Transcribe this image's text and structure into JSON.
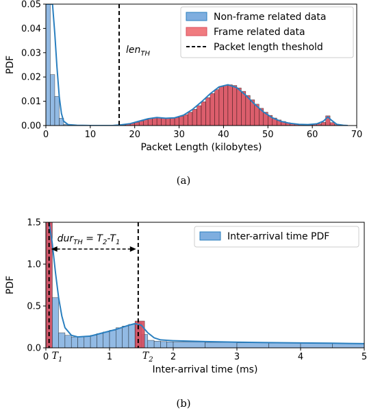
{
  "chart_data": [
    {
      "panel_label": "(a)",
      "type": "histogram",
      "xlabel": "Packet Length (kilobytes)",
      "ylabel": "PDF",
      "xlim": [
        0,
        70
      ],
      "ylim": [
        0,
        0.05
      ],
      "xticks": [
        "0",
        "10",
        "20",
        "30",
        "40",
        "50",
        "60",
        "70"
      ],
      "yticks": [
        "0.00",
        "0.01",
        "0.02",
        "0.03",
        "0.04",
        "0.05"
      ],
      "legend_position": "top-right",
      "legend": [
        {
          "label": "Non-frame related data",
          "color": "#7faedf",
          "kind": "patch"
        },
        {
          "label": "Frame related data",
          "color": "#f07b7f",
          "kind": "patch"
        },
        {
          "label": "Packet length theshold",
          "color": "#000000",
          "kind": "dashed-line"
        }
      ],
      "threshold": {
        "x": 16.5,
        "label_text": "len",
        "label_sub": "TH"
      },
      "bin_width": 1,
      "series": [
        {
          "name": "Non-frame related data",
          "color": "#7faedf",
          "bins": [
            [
              0,
              0.05
            ],
            [
              1,
              0.021
            ],
            [
              2,
              0.012
            ],
            [
              3,
              0.003
            ],
            [
              4,
              0.0005
            ],
            [
              5,
              0.0001
            ]
          ]
        },
        {
          "name": "Frame related data",
          "color": "#d84c5c",
          "bins": [
            [
              17,
              0.0003
            ],
            [
              18,
              0.0005
            ],
            [
              19,
              0.0009
            ],
            [
              20,
              0.0013
            ],
            [
              21,
              0.0018
            ],
            [
              22,
              0.0024
            ],
            [
              23,
              0.0029
            ],
            [
              24,
              0.0032
            ],
            [
              25,
              0.0033
            ],
            [
              26,
              0.0031
            ],
            [
              27,
              0.0029
            ],
            [
              28,
              0.003
            ],
            [
              29,
              0.0033
            ],
            [
              30,
              0.0038
            ],
            [
              31,
              0.0045
            ],
            [
              32,
              0.0055
            ],
            [
              33,
              0.0067
            ],
            [
              34,
              0.0082
            ],
            [
              35,
              0.0098
            ],
            [
              36,
              0.0115
            ],
            [
              37,
              0.0132
            ],
            [
              38,
              0.0148
            ],
            [
              39,
              0.016
            ],
            [
              40,
              0.0166
            ],
            [
              41,
              0.0168
            ],
            [
              42,
              0.0165
            ],
            [
              43,
              0.0155
            ],
            [
              44,
              0.0141
            ],
            [
              45,
              0.0124
            ],
            [
              46,
              0.0106
            ],
            [
              47,
              0.0088
            ],
            [
              48,
              0.0071
            ],
            [
              49,
              0.0055
            ],
            [
              50,
              0.0042
            ],
            [
              51,
              0.0031
            ],
            [
              52,
              0.0023
            ],
            [
              53,
              0.0017
            ],
            [
              54,
              0.0012
            ],
            [
              55,
              0.0009
            ],
            [
              56,
              0.0006
            ],
            [
              57,
              0.0005
            ],
            [
              58,
              0.0004
            ],
            [
              59,
              0.0004
            ],
            [
              60,
              0.0005
            ],
            [
              61,
              0.0007
            ],
            [
              62,
              0.0013
            ],
            [
              63,
              0.004
            ],
            [
              64,
              0.0012
            ],
            [
              65,
              0.0004
            ]
          ]
        }
      ],
      "kde": {
        "color": "#2a7fbf",
        "points": [
          [
            0,
            0.05
          ],
          [
            1.5,
            0.05
          ],
          [
            2,
            0.038
          ],
          [
            2.5,
            0.024
          ],
          [
            3,
            0.012
          ],
          [
            3.5,
            0.005
          ],
          [
            4,
            0.0018
          ],
          [
            5,
            0.0004
          ],
          [
            7,
            0.0001
          ],
          [
            10,
            0
          ],
          [
            15,
            0
          ],
          [
            17,
            0.0003
          ],
          [
            19,
            0.0008
          ],
          [
            21,
            0.0018
          ],
          [
            23,
            0.0028
          ],
          [
            25,
            0.0033
          ],
          [
            27,
            0.003
          ],
          [
            29,
            0.0032
          ],
          [
            31,
            0.0043
          ],
          [
            33,
            0.0066
          ],
          [
            35,
            0.0097
          ],
          [
            37,
            0.0131
          ],
          [
            39,
            0.0159
          ],
          [
            41,
            0.0168
          ],
          [
            43,
            0.0156
          ],
          [
            45,
            0.0125
          ],
          [
            47,
            0.0088
          ],
          [
            49,
            0.0056
          ],
          [
            51,
            0.0032
          ],
          [
            53,
            0.0017
          ],
          [
            55,
            0.0009
          ],
          [
            57,
            0.0005
          ],
          [
            59,
            0.0004
          ],
          [
            61,
            0.0007
          ],
          [
            62.5,
            0.0018
          ],
          [
            63.5,
            0.0036
          ],
          [
            64.3,
            0.0022
          ],
          [
            65.5,
            0.0005
          ],
          [
            67,
            0.0001
          ],
          [
            68,
            0
          ]
        ]
      }
    },
    {
      "panel_label": "(b)",
      "type": "histogram",
      "xlabel": "Inter-arrival time (ms)",
      "ylabel": "PDF",
      "xlim": [
        0,
        5
      ],
      "ylim": [
        0,
        1.5
      ],
      "xticks": [
        "0",
        "1",
        "2",
        "3",
        "4",
        "5"
      ],
      "yticks": [
        "0.0",
        "0.5",
        "1.0",
        "1.5"
      ],
      "legend_position": "top-right",
      "legend": [
        {
          "label": "Inter-arrival time PDF",
          "color": "#7faedf",
          "kind": "patch"
        }
      ],
      "markers": [
        {
          "x": 0.05,
          "label_text": "T",
          "label_sub": "1"
        },
        {
          "x": 1.45,
          "label_text": "T",
          "label_sub": "2"
        }
      ],
      "duration_annotation": {
        "text": "dur",
        "sub": "TH",
        "rest": " = T",
        "sub2": "2",
        "dash": "-T",
        "sub3": "1"
      },
      "bin_width": 0.1,
      "series": [
        {
          "name": "Inter-arrival time PDF",
          "color": "#7faedf",
          "bins": [
            [
              0.0,
              1.5
            ],
            [
              0.1,
              0.6
            ],
            [
              0.2,
              0.18
            ],
            [
              0.3,
              0.15
            ],
            [
              0.4,
              0.13
            ],
            [
              0.5,
              0.13
            ],
            [
              0.6,
              0.14
            ],
            [
              0.7,
              0.15
            ],
            [
              0.8,
              0.17
            ],
            [
              0.9,
              0.19
            ],
            [
              1.0,
              0.21
            ],
            [
              1.1,
              0.24
            ],
            [
              1.2,
              0.26
            ],
            [
              1.3,
              0.28
            ],
            [
              1.4,
              0.3
            ],
            [
              1.5,
              0.16
            ],
            [
              1.6,
              0.09
            ],
            [
              1.7,
              0.08
            ],
            [
              1.8,
              0.075
            ],
            [
              1.9,
              0.072
            ],
            [
              2.0,
              0.07
            ],
            [
              2.5,
              0.065
            ],
            [
              3.0,
              0.06
            ],
            [
              3.5,
              0.057
            ],
            [
              4.0,
              0.055
            ],
            [
              4.5,
              0.052
            ]
          ],
          "wide_bins_from": 2.0,
          "wide_bin_width": 0.5
        },
        {
          "name": "threshold bins",
          "color": "#d84c5c",
          "bins": [
            [
              0.0,
              1.5
            ],
            [
              1.4,
              0.32
            ]
          ],
          "bin_widths": [
            0.1,
            0.15
          ]
        }
      ],
      "kde": {
        "color": "#2a7fbf",
        "points": [
          [
            0.05,
            1.5
          ],
          [
            0.1,
            1.25
          ],
          [
            0.15,
            0.9
          ],
          [
            0.2,
            0.6
          ],
          [
            0.25,
            0.38
          ],
          [
            0.3,
            0.24
          ],
          [
            0.4,
            0.15
          ],
          [
            0.5,
            0.13
          ],
          [
            0.7,
            0.14
          ],
          [
            0.9,
            0.18
          ],
          [
            1.1,
            0.22
          ],
          [
            1.3,
            0.27
          ],
          [
            1.4,
            0.29
          ],
          [
            1.5,
            0.27
          ],
          [
            1.6,
            0.18
          ],
          [
            1.7,
            0.12
          ],
          [
            1.8,
            0.095
          ],
          [
            2.0,
            0.085
          ],
          [
            2.5,
            0.075
          ],
          [
            3.0,
            0.068
          ],
          [
            3.5,
            0.062
          ],
          [
            4.0,
            0.058
          ],
          [
            4.5,
            0.055
          ],
          [
            5.0,
            0.05
          ]
        ]
      }
    }
  ]
}
